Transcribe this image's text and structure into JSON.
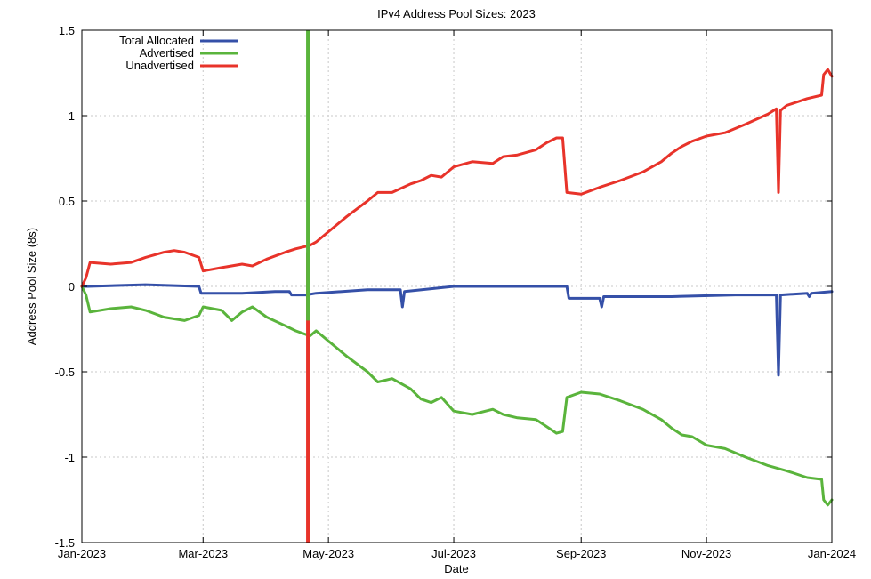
{
  "chart_data": {
    "type": "line",
    "title": "IPv4 Address Pool Sizes: 2023",
    "xlabel": "Date",
    "ylabel": "Address Pool Size (8s)",
    "xlim": [
      "2023-01-01",
      "2024-01-01"
    ],
    "ylim": [
      -1.5,
      1.5
    ],
    "x_ticks": [
      {
        "label": "Jan-2023",
        "date": "2023-01-01"
      },
      {
        "label": "Mar-2023",
        "date": "2023-03-01"
      },
      {
        "label": "May-2023",
        "date": "2023-05-01"
      },
      {
        "label": "Jul-2023",
        "date": "2023-07-01"
      },
      {
        "label": "Sep-2023",
        "date": "2023-09-01"
      },
      {
        "label": "Nov-2023",
        "date": "2023-11-01"
      },
      {
        "label": "Jan-2024",
        "date": "2024-01-01"
      }
    ],
    "y_ticks": [
      {
        "label": "1.5",
        "value": 1.5
      },
      {
        "label": "1",
        "value": 1
      },
      {
        "label": "0.5",
        "value": 0.5
      },
      {
        "label": "0",
        "value": 0
      },
      {
        "label": "-0.5",
        "value": -0.5
      },
      {
        "label": "-1",
        "value": -1
      },
      {
        "label": "-1.5",
        "value": -1.5
      }
    ],
    "grid": true,
    "legend_position": "top-left",
    "series": [
      {
        "name": "Total Allocated",
        "color": "#3550a8",
        "points": [
          [
            "2023-01-01",
            0.0
          ],
          [
            "2023-01-04",
            0.0
          ],
          [
            "2023-02-01",
            0.01
          ],
          [
            "2023-02-27",
            0.0
          ],
          [
            "2023-02-28",
            -0.04
          ],
          [
            "2023-03-20",
            -0.04
          ],
          [
            "2023-04-05",
            -0.03
          ],
          [
            "2023-04-12",
            -0.03
          ],
          [
            "2023-04-13",
            -0.05
          ],
          [
            "2023-04-20",
            -0.05
          ],
          [
            "2023-04-25",
            -0.04
          ],
          [
            "2023-05-20",
            -0.02
          ],
          [
            "2023-06-05",
            -0.02
          ],
          [
            "2023-06-06",
            -0.12
          ],
          [
            "2023-06-07",
            -0.03
          ],
          [
            "2023-07-01",
            0.0
          ],
          [
            "2023-08-10",
            0.0
          ],
          [
            "2023-08-25",
            0.0
          ],
          [
            "2023-08-26",
            -0.07
          ],
          [
            "2023-09-10",
            -0.07
          ],
          [
            "2023-09-11",
            -0.12
          ],
          [
            "2023-09-12",
            -0.06
          ],
          [
            "2023-10-15",
            -0.06
          ],
          [
            "2023-11-15",
            -0.05
          ],
          [
            "2023-12-05",
            -0.05
          ],
          [
            "2023-12-06",
            -0.52
          ],
          [
            "2023-12-07",
            -0.05
          ],
          [
            "2023-12-20",
            -0.04
          ],
          [
            "2023-12-21",
            -0.06
          ],
          [
            "2023-12-22",
            -0.04
          ],
          [
            "2024-01-01",
            -0.03
          ]
        ]
      },
      {
        "name": "Advertised",
        "color": "#5ab43c",
        "points": [
          [
            "2023-01-01",
            0.0
          ],
          [
            "2023-01-03",
            -0.05
          ],
          [
            "2023-01-05",
            -0.15
          ],
          [
            "2023-01-15",
            -0.13
          ],
          [
            "2023-01-25",
            -0.12
          ],
          [
            "2023-02-01",
            -0.14
          ],
          [
            "2023-02-10",
            -0.18
          ],
          [
            "2023-02-15",
            -0.19
          ],
          [
            "2023-02-20",
            -0.2
          ],
          [
            "2023-02-27",
            -0.17
          ],
          [
            "2023-03-01",
            -0.12
          ],
          [
            "2023-03-10",
            -0.14
          ],
          [
            "2023-03-15",
            -0.2
          ],
          [
            "2023-03-20",
            -0.15
          ],
          [
            "2023-03-25",
            -0.12
          ],
          [
            "2023-04-01",
            -0.18
          ],
          [
            "2023-04-10",
            -0.23
          ],
          [
            "2023-04-15",
            -0.26
          ],
          [
            "2023-04-22",
            -0.29
          ],
          [
            "2023-04-23",
            -0.28
          ],
          [
            "2023-04-25",
            -0.26
          ],
          [
            "2023-05-05",
            -0.36
          ],
          [
            "2023-05-10",
            -0.41
          ],
          [
            "2023-05-20",
            -0.5
          ],
          [
            "2023-05-25",
            -0.56
          ],
          [
            "2023-06-01",
            -0.54
          ],
          [
            "2023-06-10",
            -0.6
          ],
          [
            "2023-06-15",
            -0.66
          ],
          [
            "2023-06-20",
            -0.68
          ],
          [
            "2023-06-25",
            -0.65
          ],
          [
            "2023-07-01",
            -0.73
          ],
          [
            "2023-07-10",
            -0.75
          ],
          [
            "2023-07-20",
            -0.72
          ],
          [
            "2023-07-25",
            -0.75
          ],
          [
            "2023-08-01",
            -0.77
          ],
          [
            "2023-08-10",
            -0.78
          ],
          [
            "2023-08-15",
            -0.82
          ],
          [
            "2023-08-20",
            -0.86
          ],
          [
            "2023-08-23",
            -0.85
          ],
          [
            "2023-08-25",
            -0.65
          ],
          [
            "2023-09-01",
            -0.62
          ],
          [
            "2023-09-10",
            -0.63
          ],
          [
            "2023-09-20",
            -0.67
          ],
          [
            "2023-10-01",
            -0.72
          ],
          [
            "2023-10-10",
            -0.78
          ],
          [
            "2023-10-15",
            -0.83
          ],
          [
            "2023-10-20",
            -0.87
          ],
          [
            "2023-10-25",
            -0.88
          ],
          [
            "2023-11-01",
            -0.93
          ],
          [
            "2023-11-10",
            -0.95
          ],
          [
            "2023-11-20",
            -1.0
          ],
          [
            "2023-12-01",
            -1.05
          ],
          [
            "2023-12-10",
            -1.08
          ],
          [
            "2023-12-20",
            -1.12
          ],
          [
            "2023-12-27",
            -1.13
          ],
          [
            "2023-12-28",
            -1.25
          ],
          [
            "2023-12-30",
            -1.28
          ],
          [
            "2024-01-01",
            -1.25
          ]
        ]
      },
      {
        "name": "Unadvertised",
        "color": "#e8332a",
        "points": [
          [
            "2023-01-01",
            0.0
          ],
          [
            "2023-01-03",
            0.05
          ],
          [
            "2023-01-05",
            0.14
          ],
          [
            "2023-01-15",
            0.13
          ],
          [
            "2023-01-25",
            0.14
          ],
          [
            "2023-02-01",
            0.17
          ],
          [
            "2023-02-10",
            0.2
          ],
          [
            "2023-02-15",
            0.21
          ],
          [
            "2023-02-20",
            0.2
          ],
          [
            "2023-02-27",
            0.17
          ],
          [
            "2023-03-01",
            0.09
          ],
          [
            "2023-03-10",
            0.11
          ],
          [
            "2023-03-20",
            0.13
          ],
          [
            "2023-03-25",
            0.12
          ],
          [
            "2023-04-01",
            0.16
          ],
          [
            "2023-04-10",
            0.2
          ],
          [
            "2023-04-15",
            0.22
          ],
          [
            "2023-04-22",
            0.24
          ],
          [
            "2023-04-25",
            0.26
          ],
          [
            "2023-05-05",
            0.36
          ],
          [
            "2023-05-10",
            0.41
          ],
          [
            "2023-05-20",
            0.5
          ],
          [
            "2023-05-25",
            0.55
          ],
          [
            "2023-06-01",
            0.55
          ],
          [
            "2023-06-10",
            0.6
          ],
          [
            "2023-06-15",
            0.62
          ],
          [
            "2023-06-20",
            0.65
          ],
          [
            "2023-06-25",
            0.64
          ],
          [
            "2023-07-01",
            0.7
          ],
          [
            "2023-07-10",
            0.73
          ],
          [
            "2023-07-20",
            0.72
          ],
          [
            "2023-07-25",
            0.76
          ],
          [
            "2023-08-01",
            0.77
          ],
          [
            "2023-08-10",
            0.8
          ],
          [
            "2023-08-15",
            0.84
          ],
          [
            "2023-08-20",
            0.87
          ],
          [
            "2023-08-23",
            0.87
          ],
          [
            "2023-08-25",
            0.55
          ],
          [
            "2023-09-01",
            0.54
          ],
          [
            "2023-09-10",
            0.58
          ],
          [
            "2023-09-20",
            0.62
          ],
          [
            "2023-10-01",
            0.67
          ],
          [
            "2023-10-10",
            0.73
          ],
          [
            "2023-10-15",
            0.78
          ],
          [
            "2023-10-20",
            0.82
          ],
          [
            "2023-10-25",
            0.85
          ],
          [
            "2023-11-01",
            0.88
          ],
          [
            "2023-11-10",
            0.9
          ],
          [
            "2023-11-20",
            0.95
          ],
          [
            "2023-12-01",
            1.01
          ],
          [
            "2023-12-05",
            1.04
          ],
          [
            "2023-12-06",
            0.55
          ],
          [
            "2023-12-07",
            1.03
          ],
          [
            "2023-12-10",
            1.06
          ],
          [
            "2023-12-20",
            1.1
          ],
          [
            "2023-12-27",
            1.12
          ],
          [
            "2023-12-28",
            1.24
          ],
          [
            "2023-12-30",
            1.27
          ],
          [
            "2024-01-01",
            1.23
          ]
        ]
      }
    ],
    "spike": {
      "date": "2023-04-21",
      "advertised_range": [
        -0.2,
        1.5
      ],
      "unadvertised_range": [
        -1.5,
        0.2
      ]
    }
  }
}
